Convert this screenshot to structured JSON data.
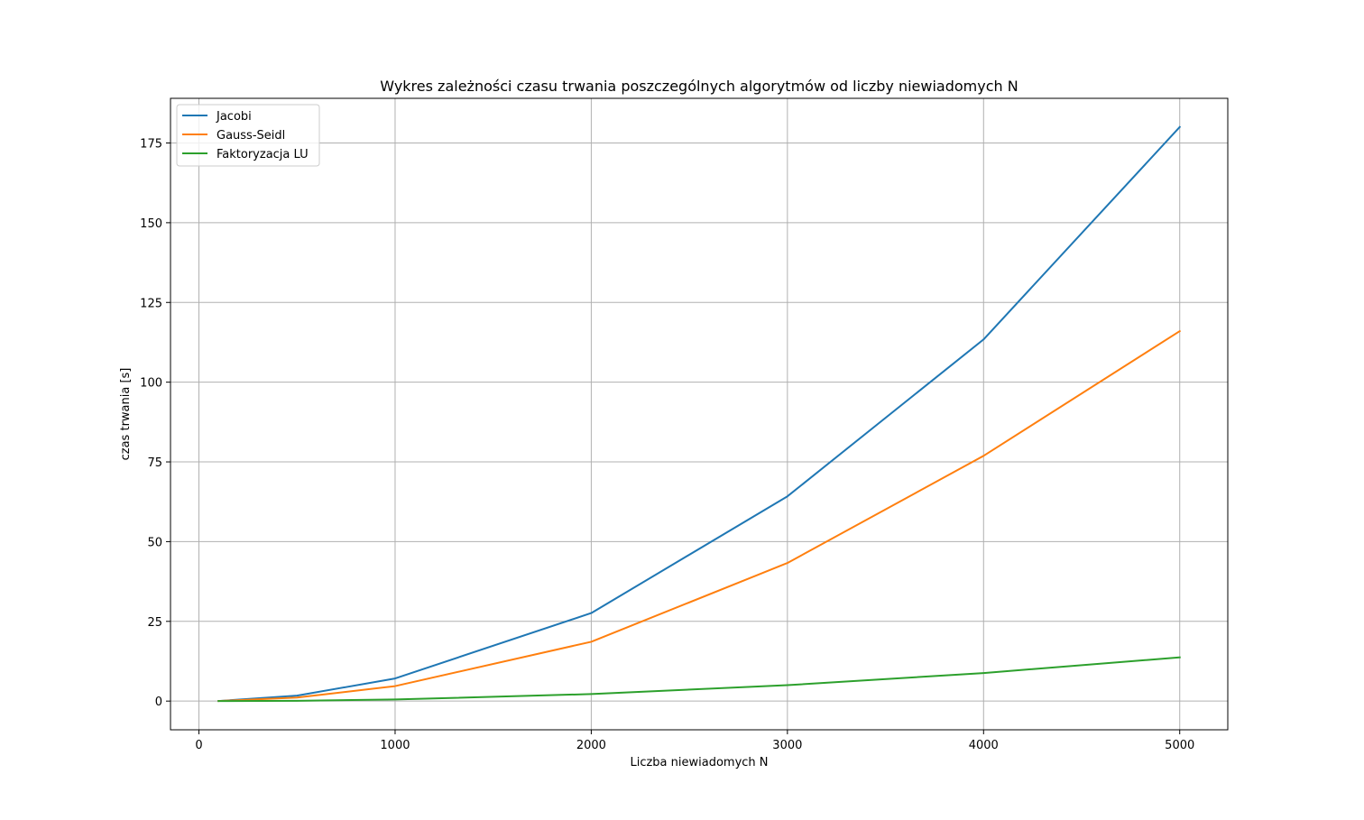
{
  "chart_data": {
    "type": "line",
    "title": "Wykres zależności czasu trwania poszczególnych algorytmów od liczby niewiadomych N",
    "xlabel": "Liczba niewiadomych N",
    "ylabel": "czas trwania [s]",
    "x": [
      100,
      500,
      1000,
      2000,
      3000,
      4000,
      5000
    ],
    "series": [
      {
        "name": "Jacobi",
        "color": "#1f77b4",
        "values": [
          0.03,
          1.7,
          7.1,
          27.6,
          64.2,
          113.4,
          180.0
        ]
      },
      {
        "name": "Gauss-Seidl",
        "color": "#ff7f0e",
        "values": [
          0.02,
          1.1,
          4.7,
          18.6,
          43.3,
          76.9,
          116.0
        ]
      },
      {
        "name": "Faktoryzacja LU",
        "color": "#2ca02c",
        "values": [
          0.0,
          0.1,
          0.5,
          2.2,
          5.0,
          8.8,
          13.7
        ]
      }
    ],
    "xlim": [
      -145,
      5245
    ],
    "ylim": [
      -9,
      189
    ],
    "xticks": [
      0,
      1000,
      2000,
      3000,
      4000,
      5000
    ],
    "yticks": [
      0,
      25,
      50,
      75,
      100,
      125,
      150,
      175
    ],
    "grid": true,
    "legend_position": "top-left"
  }
}
